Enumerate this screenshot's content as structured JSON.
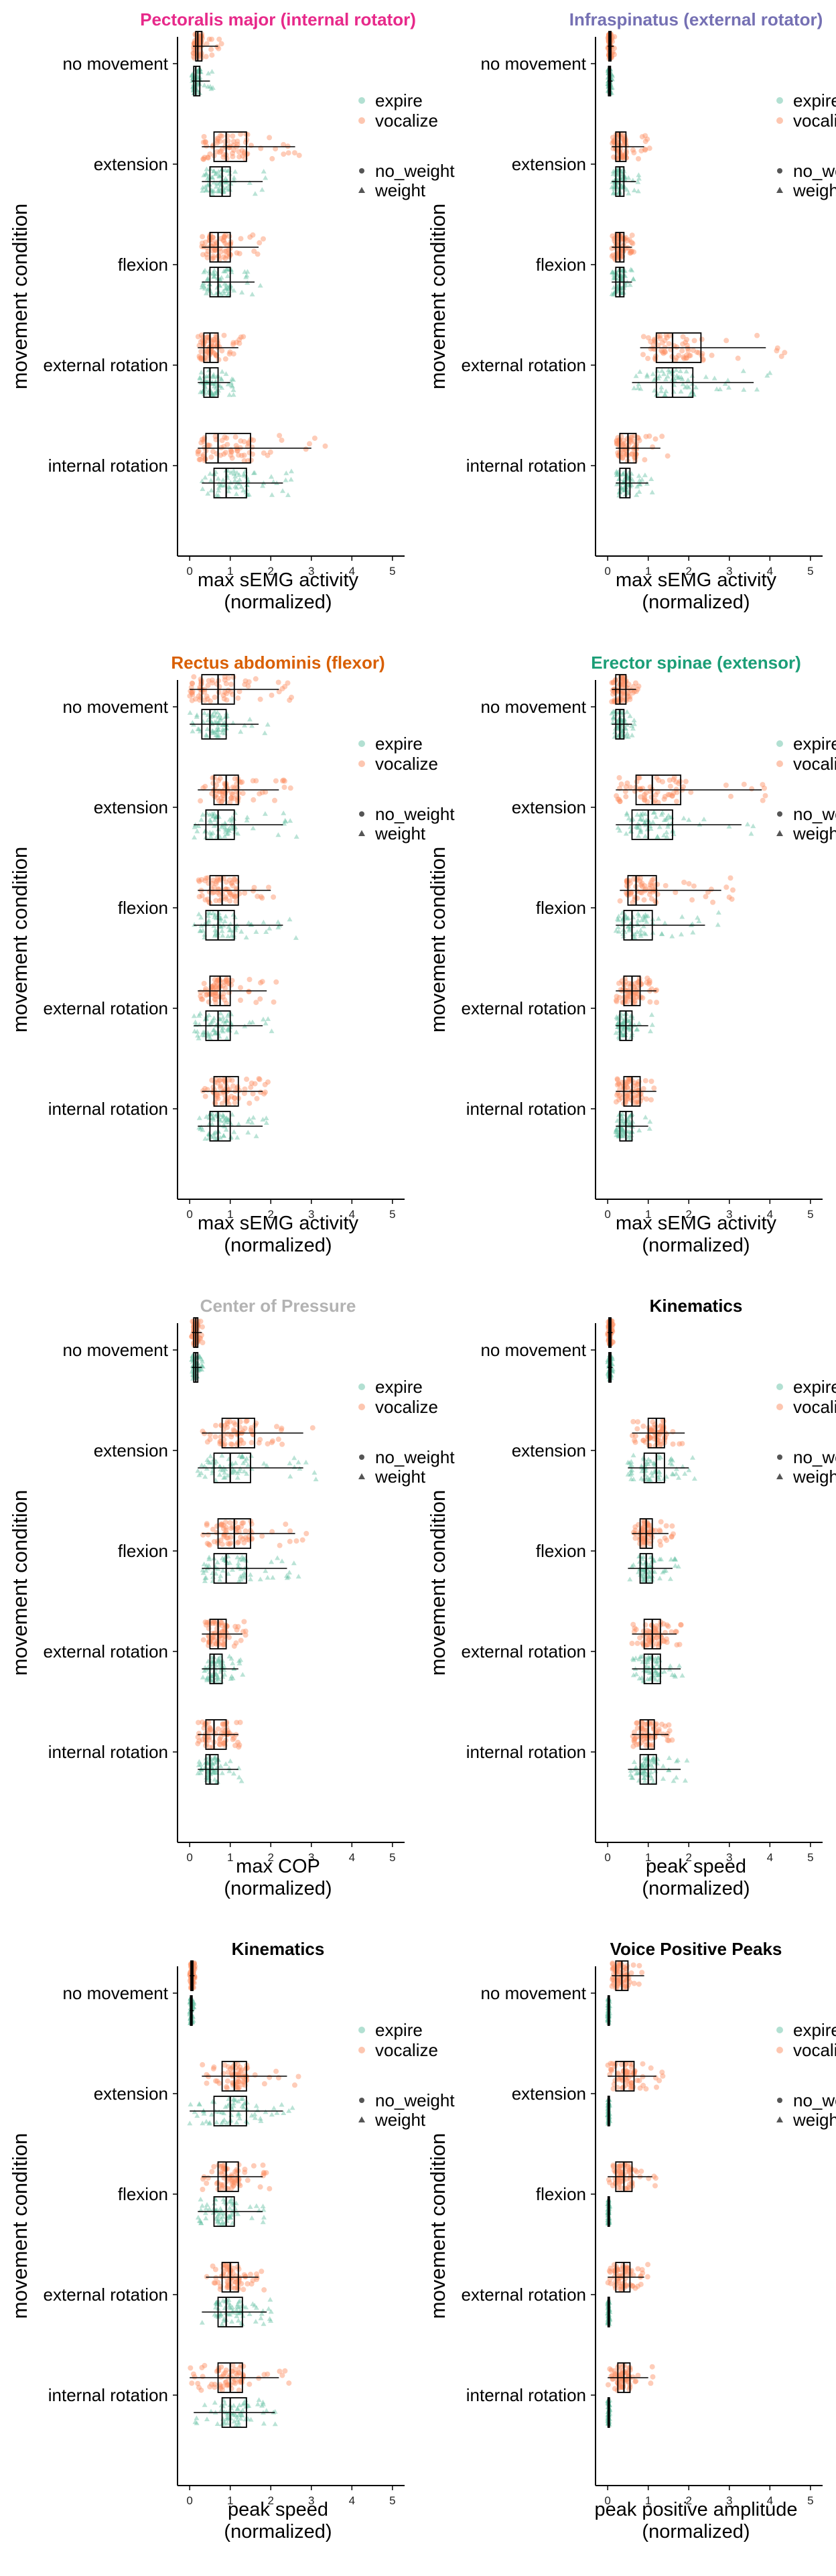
{
  "figure": {
    "legend_groups": [
      "expire",
      "vocalize"
    ],
    "legend_weights": [
      "no_weight",
      "weight"
    ],
    "colors": {
      "expire": "#66c2a5",
      "vocalize": "#fc8d62",
      "box": "#000000",
      "axis": "#000000"
    }
  },
  "chart_data": [
    {
      "type": "box",
      "title": "Pectoralis major (internal rotator)",
      "title_color": "#e7298a",
      "xlabel": "max sEMG activity\n(normalized)",
      "ylabel": "movement condition",
      "categories": [
        "no movement",
        "extension",
        "flexion",
        "external rotation",
        "internal rotation"
      ],
      "x_ticks": [
        0,
        1,
        2,
        3,
        4,
        5
      ],
      "xlim": [
        -0.3,
        5.3
      ],
      "series": [
        {
          "name": "vocalize",
          "boxes": [
            [
              0.08,
              0.15,
              0.2,
              0.3,
              0.7
            ],
            [
              0.3,
              0.6,
              0.9,
              1.4,
              2.6
            ],
            [
              0.3,
              0.5,
              0.7,
              1.0,
              1.7
            ],
            [
              0.2,
              0.35,
              0.5,
              0.7,
              1.2
            ],
            [
              0.2,
              0.4,
              0.7,
              1.5,
              3.0
            ]
          ]
        },
        {
          "name": "expire",
          "boxes": [
            [
              0.05,
              0.1,
              0.15,
              0.25,
              0.5
            ],
            [
              0.3,
              0.5,
              0.8,
              1.0,
              1.8
            ],
            [
              0.3,
              0.5,
              0.7,
              1.0,
              1.6
            ],
            [
              0.2,
              0.35,
              0.5,
              0.7,
              1.0
            ],
            [
              0.3,
              0.6,
              0.9,
              1.4,
              2.3
            ]
          ]
        }
      ]
    },
    {
      "type": "box",
      "title": "Infraspinatus (external rotator)",
      "title_color": "#7570b3",
      "xlabel": "max sEMG activity\n(normalized)",
      "ylabel": "movement condition",
      "categories": [
        "no movement",
        "extension",
        "flexion",
        "external rotation",
        "internal rotation"
      ],
      "x_ticks": [
        0,
        1,
        2,
        3,
        4,
        5
      ],
      "xlim": [
        -0.3,
        5.3
      ],
      "series": [
        {
          "name": "vocalize",
          "boxes": [
            [
              0.0,
              0.03,
              0.05,
              0.08,
              0.15
            ],
            [
              0.1,
              0.2,
              0.3,
              0.45,
              0.9
            ],
            [
              0.1,
              0.2,
              0.3,
              0.4,
              0.6
            ],
            [
              0.8,
              1.2,
              1.6,
              2.3,
              3.9
            ],
            [
              0.2,
              0.3,
              0.5,
              0.7,
              1.3
            ]
          ]
        },
        {
          "name": "expire",
          "boxes": [
            [
              0.0,
              0.02,
              0.05,
              0.07,
              0.12
            ],
            [
              0.1,
              0.2,
              0.3,
              0.4,
              0.7
            ],
            [
              0.1,
              0.2,
              0.3,
              0.4,
              0.6
            ],
            [
              0.6,
              1.2,
              1.6,
              2.1,
              3.6
            ],
            [
              0.2,
              0.3,
              0.45,
              0.55,
              1.0
            ]
          ]
        }
      ]
    },
    {
      "type": "box",
      "title": "Rectus abdominis (flexor)",
      "title_color": "#d95f02",
      "xlabel": "max sEMG activity\n(normalized)",
      "ylabel": "movement condition",
      "categories": [
        "no movement",
        "extension",
        "flexion",
        "external rotation",
        "internal rotation"
      ],
      "x_ticks": [
        0,
        1,
        2,
        3,
        4,
        5
      ],
      "xlim": [
        -0.3,
        5.3
      ],
      "series": [
        {
          "name": "vocalize",
          "boxes": [
            [
              0.0,
              0.3,
              0.7,
              1.1,
              2.2
            ],
            [
              0.2,
              0.6,
              0.9,
              1.2,
              2.2
            ],
            [
              0.2,
              0.5,
              0.8,
              1.2,
              2.0
            ],
            [
              0.2,
              0.5,
              0.75,
              1.0,
              1.9
            ],
            [
              0.3,
              0.6,
              0.9,
              1.2,
              1.8
            ]
          ]
        },
        {
          "name": "expire",
          "boxes": [
            [
              0.0,
              0.3,
              0.5,
              0.9,
              1.7
            ],
            [
              0.1,
              0.4,
              0.7,
              1.1,
              2.3
            ],
            [
              0.1,
              0.4,
              0.7,
              1.1,
              2.3
            ],
            [
              0.1,
              0.4,
              0.7,
              1.0,
              1.8
            ],
            [
              0.2,
              0.5,
              0.7,
              1.0,
              1.8
            ]
          ]
        }
      ]
    },
    {
      "type": "box",
      "title": "Erector spinae (extensor)",
      "title_color": "#1b9e77",
      "xlabel": "max sEMG activity\n(normalized)",
      "ylabel": "movement condition",
      "categories": [
        "no movement",
        "extension",
        "flexion",
        "external rotation",
        "internal rotation"
      ],
      "x_ticks": [
        0,
        1,
        2,
        3,
        4,
        5
      ],
      "xlim": [
        -0.3,
        5.3
      ],
      "series": [
        {
          "name": "vocalize",
          "boxes": [
            [
              0.1,
              0.2,
              0.3,
              0.45,
              0.7
            ],
            [
              0.2,
              0.7,
              1.1,
              1.8,
              3.8
            ],
            [
              0.3,
              0.5,
              0.7,
              1.2,
              2.8
            ],
            [
              0.2,
              0.4,
              0.6,
              0.8,
              1.2
            ],
            [
              0.2,
              0.4,
              0.6,
              0.8,
              1.2
            ]
          ]
        },
        {
          "name": "expire",
          "boxes": [
            [
              0.1,
              0.2,
              0.3,
              0.4,
              0.6
            ],
            [
              0.2,
              0.6,
              1.0,
              1.6,
              3.3
            ],
            [
              0.2,
              0.4,
              0.6,
              1.1,
              2.4
            ],
            [
              0.2,
              0.3,
              0.45,
              0.6,
              1.0
            ],
            [
              0.2,
              0.3,
              0.45,
              0.6,
              1.0
            ]
          ]
        }
      ]
    },
    {
      "type": "box",
      "title": "Center of Pressure",
      "title_color": "#b3b3b3",
      "xlabel": "max COP\n(normalized)",
      "ylabel": "movement condition",
      "categories": [
        "no movement",
        "extension",
        "flexion",
        "external rotation",
        "internal rotation"
      ],
      "x_ticks": [
        0,
        1,
        2,
        3,
        4,
        5
      ],
      "xlim": [
        -0.3,
        5.3
      ],
      "series": [
        {
          "name": "vocalize",
          "boxes": [
            [
              0.05,
              0.1,
              0.15,
              0.2,
              0.3
            ],
            [
              0.3,
              0.8,
              1.2,
              1.6,
              2.8
            ],
            [
              0.3,
              0.7,
              1.1,
              1.5,
              2.6
            ],
            [
              0.3,
              0.5,
              0.7,
              0.9,
              1.3
            ],
            [
              0.2,
              0.4,
              0.6,
              0.9,
              1.2
            ]
          ]
        },
        {
          "name": "expire",
          "boxes": [
            [
              0.05,
              0.1,
              0.15,
              0.2,
              0.3
            ],
            [
              0.2,
              0.6,
              1.0,
              1.5,
              2.8
            ],
            [
              0.3,
              0.6,
              0.9,
              1.4,
              2.4
            ],
            [
              0.3,
              0.5,
              0.6,
              0.8,
              1.2
            ],
            [
              0.2,
              0.4,
              0.5,
              0.7,
              1.2
            ]
          ]
        }
      ]
    },
    {
      "type": "box",
      "title": "Kinematics",
      "title_color": "#000000",
      "xlabel": "peak speed\n(normalized)",
      "ylabel": "movement condition",
      "categories": [
        "no movement",
        "extension",
        "flexion",
        "external rotation",
        "internal rotation"
      ],
      "x_ticks": [
        0,
        1,
        2,
        3,
        4,
        5
      ],
      "xlim": [
        -0.3,
        5.3
      ],
      "series": [
        {
          "name": "vocalize",
          "boxes": [
            [
              0.0,
              0.03,
              0.05,
              0.08,
              0.12
            ],
            [
              0.6,
              1.0,
              1.2,
              1.4,
              1.9
            ],
            [
              0.6,
              0.8,
              0.95,
              1.1,
              1.5
            ],
            [
              0.6,
              0.9,
              1.1,
              1.3,
              1.7
            ],
            [
              0.6,
              0.8,
              1.0,
              1.15,
              1.5
            ]
          ]
        },
        {
          "name": "expire",
          "boxes": [
            [
              0.0,
              0.03,
              0.05,
              0.08,
              0.12
            ],
            [
              0.5,
              0.9,
              1.2,
              1.4,
              2.0
            ],
            [
              0.5,
              0.8,
              0.95,
              1.1,
              1.6
            ],
            [
              0.6,
              0.9,
              1.1,
              1.3,
              1.8
            ],
            [
              0.5,
              0.8,
              1.0,
              1.2,
              1.8
            ]
          ]
        }
      ]
    },
    {
      "type": "box",
      "title": "Kinematics",
      "title_color": "#000000",
      "xlabel": "peak speed\n(normalized)",
      "ylabel": "movement condition",
      "categories": [
        "no movement",
        "extension",
        "flexion",
        "external rotation",
        "internal rotation"
      ],
      "x_ticks": [
        0,
        1,
        2,
        3,
        4,
        5
      ],
      "xlim": [
        -0.3,
        5.3
      ],
      "series": [
        {
          "name": "vocalize",
          "boxes": [
            [
              0.0,
              0.03,
              0.05,
              0.08,
              0.12
            ],
            [
              0.3,
              0.8,
              1.1,
              1.4,
              2.4
            ],
            [
              0.3,
              0.7,
              0.9,
              1.2,
              1.8
            ],
            [
              0.4,
              0.8,
              1.0,
              1.2,
              1.7
            ],
            [
              0.0,
              0.7,
              1.0,
              1.3,
              2.2
            ]
          ]
        },
        {
          "name": "expire",
          "boxes": [
            [
              0.0,
              0.02,
              0.04,
              0.06,
              0.1
            ],
            [
              0.0,
              0.6,
              1.0,
              1.4,
              2.3
            ],
            [
              0.2,
              0.6,
              0.9,
              1.1,
              1.8
            ],
            [
              0.3,
              0.7,
              0.9,
              1.3,
              1.9
            ],
            [
              0.1,
              0.8,
              1.0,
              1.4,
              2.1
            ]
          ]
        }
      ]
    },
    {
      "type": "box",
      "title": "Voice Positive Peaks",
      "title_color": "#000000",
      "xlabel": "peak positive amplitude\n(normalized)",
      "ylabel": "movement condition",
      "categories": [
        "no movement",
        "extension",
        "flexion",
        "external rotation",
        "internal rotation"
      ],
      "x_ticks": [
        0,
        1,
        2,
        3,
        4,
        5
      ],
      "xlim": [
        -0.3,
        5.3
      ],
      "series": [
        {
          "name": "vocalize",
          "boxes": [
            [
              0.1,
              0.2,
              0.35,
              0.5,
              0.9
            ],
            [
              0.0,
              0.2,
              0.4,
              0.65,
              1.2
            ],
            [
              0.0,
              0.2,
              0.4,
              0.6,
              1.1
            ],
            [
              0.0,
              0.2,
              0.4,
              0.55,
              0.9
            ],
            [
              0.0,
              0.25,
              0.4,
              0.55,
              1.0
            ]
          ]
        },
        {
          "name": "expire",
          "boxes": [
            [
              0.0,
              0.01,
              0.02,
              0.03,
              0.05
            ],
            [
              0.0,
              0.01,
              0.02,
              0.03,
              0.05
            ],
            [
              0.0,
              0.01,
              0.02,
              0.03,
              0.05
            ],
            [
              0.0,
              0.01,
              0.02,
              0.03,
              0.05
            ],
            [
              0.0,
              0.01,
              0.02,
              0.03,
              0.05
            ]
          ]
        }
      ]
    }
  ]
}
